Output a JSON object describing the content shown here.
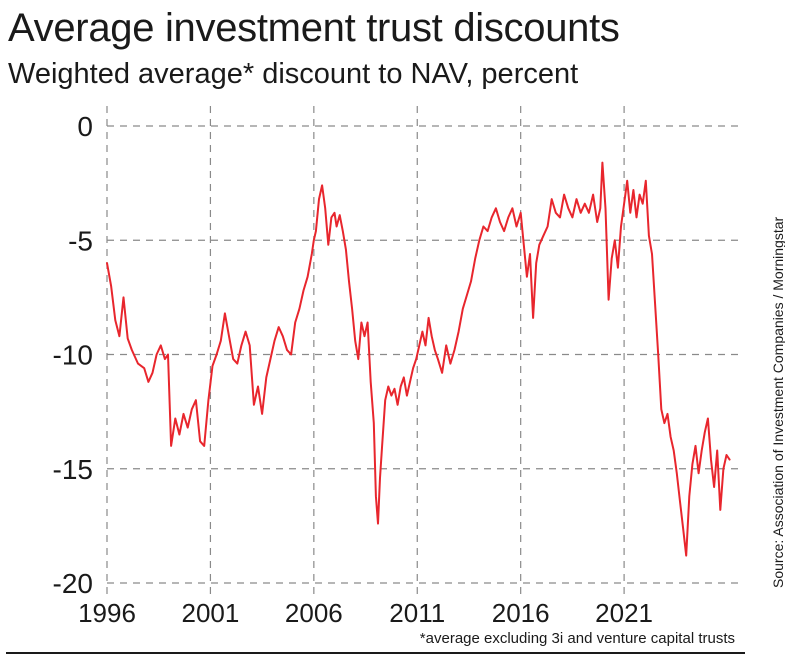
{
  "title": "Average investment trust discounts",
  "subtitle": "Weighted average* discount to NAV, percent",
  "footnote": "*average excluding 3i and venture capital trusts",
  "source": "Source: Association of Investment Companies / Morningstar",
  "colors": {
    "line": "#e8262d",
    "grid": "#8a8a8a",
    "text": "#1a1a1a"
  },
  "chart_data": {
    "type": "line",
    "title": "Average investment trust discounts",
    "subtitle": "Weighted average* discount to NAV, percent",
    "xlabel": "",
    "ylabel": "",
    "xlim": [
      1996,
      2026.7
    ],
    "ylim": [
      -20,
      0
    ],
    "x_ticks": [
      1996,
      2001,
      2006,
      2011,
      2016,
      2021
    ],
    "y_ticks": [
      0,
      -5,
      -10,
      -15,
      -20
    ],
    "grid": true,
    "series": [
      {
        "name": "",
        "points": [
          [
            1996.0,
            -6.0
          ],
          [
            1996.2,
            -7.0
          ],
          [
            1996.4,
            -8.5
          ],
          [
            1996.6,
            -9.2
          ],
          [
            1996.8,
            -7.5
          ],
          [
            1997.0,
            -9.3
          ],
          [
            1997.2,
            -9.8
          ],
          [
            1997.5,
            -10.4
          ],
          [
            1997.8,
            -10.6
          ],
          [
            1998.0,
            -11.2
          ],
          [
            1998.2,
            -10.8
          ],
          [
            1998.4,
            -10.0
          ],
          [
            1998.6,
            -9.6
          ],
          [
            1998.8,
            -10.2
          ],
          [
            1998.95,
            -10.0
          ],
          [
            1999.1,
            -14.0
          ],
          [
            1999.3,
            -12.8
          ],
          [
            1999.5,
            -13.5
          ],
          [
            1999.7,
            -12.6
          ],
          [
            1999.9,
            -13.2
          ],
          [
            2000.1,
            -12.4
          ],
          [
            2000.3,
            -12.0
          ],
          [
            2000.5,
            -13.8
          ],
          [
            2000.7,
            -14.0
          ],
          [
            2000.9,
            -12.0
          ],
          [
            2001.1,
            -10.5
          ],
          [
            2001.3,
            -10.0
          ],
          [
            2001.5,
            -9.4
          ],
          [
            2001.7,
            -8.2
          ],
          [
            2001.9,
            -9.2
          ],
          [
            2002.1,
            -10.2
          ],
          [
            2002.3,
            -10.4
          ],
          [
            2002.5,
            -9.6
          ],
          [
            2002.7,
            -9.0
          ],
          [
            2002.9,
            -9.6
          ],
          [
            2003.1,
            -12.2
          ],
          [
            2003.3,
            -11.4
          ],
          [
            2003.5,
            -12.6
          ],
          [
            2003.7,
            -11.0
          ],
          [
            2003.9,
            -10.2
          ],
          [
            2004.1,
            -9.4
          ],
          [
            2004.3,
            -8.8
          ],
          [
            2004.5,
            -9.2
          ],
          [
            2004.7,
            -9.8
          ],
          [
            2004.9,
            -10.0
          ],
          [
            2005.1,
            -8.6
          ],
          [
            2005.3,
            -8.0
          ],
          [
            2005.5,
            -7.2
          ],
          [
            2005.7,
            -6.6
          ],
          [
            2005.9,
            -5.6
          ],
          [
            2006.0,
            -5.0
          ],
          [
            2006.1,
            -4.6
          ],
          [
            2006.25,
            -3.2
          ],
          [
            2006.4,
            -2.6
          ],
          [
            2006.55,
            -3.6
          ],
          [
            2006.7,
            -5.2
          ],
          [
            2006.85,
            -4.0
          ],
          [
            2007.0,
            -3.8
          ],
          [
            2007.1,
            -4.4
          ],
          [
            2007.25,
            -3.9
          ],
          [
            2007.4,
            -4.6
          ],
          [
            2007.55,
            -5.4
          ],
          [
            2007.7,
            -6.8
          ],
          [
            2007.85,
            -8.0
          ],
          [
            2008.0,
            -9.4
          ],
          [
            2008.15,
            -10.2
          ],
          [
            2008.3,
            -8.6
          ],
          [
            2008.45,
            -9.2
          ],
          [
            2008.6,
            -8.6
          ],
          [
            2008.75,
            -11.2
          ],
          [
            2008.9,
            -13.0
          ],
          [
            2009.0,
            -16.2
          ],
          [
            2009.1,
            -17.4
          ],
          [
            2009.2,
            -15.4
          ],
          [
            2009.3,
            -14.0
          ],
          [
            2009.45,
            -12.0
          ],
          [
            2009.6,
            -11.4
          ],
          [
            2009.75,
            -11.8
          ],
          [
            2009.9,
            -11.5
          ],
          [
            2010.05,
            -12.2
          ],
          [
            2010.2,
            -11.4
          ],
          [
            2010.35,
            -11.0
          ],
          [
            2010.5,
            -11.8
          ],
          [
            2010.65,
            -11.2
          ],
          [
            2010.8,
            -10.6
          ],
          [
            2010.95,
            -10.2
          ],
          [
            2011.1,
            -9.6
          ],
          [
            2011.25,
            -9.0
          ],
          [
            2011.4,
            -9.6
          ],
          [
            2011.55,
            -8.4
          ],
          [
            2011.7,
            -9.2
          ],
          [
            2011.85,
            -9.8
          ],
          [
            2012.0,
            -10.2
          ],
          [
            2012.2,
            -10.8
          ],
          [
            2012.4,
            -9.6
          ],
          [
            2012.6,
            -10.4
          ],
          [
            2012.8,
            -9.8
          ],
          [
            2013.0,
            -9.0
          ],
          [
            2013.2,
            -8.0
          ],
          [
            2013.4,
            -7.4
          ],
          [
            2013.6,
            -6.8
          ],
          [
            2013.8,
            -5.8
          ],
          [
            2014.0,
            -5.0
          ],
          [
            2014.2,
            -4.4
          ],
          [
            2014.4,
            -4.6
          ],
          [
            2014.6,
            -4.0
          ],
          [
            2014.8,
            -3.6
          ],
          [
            2015.0,
            -4.2
          ],
          [
            2015.2,
            -4.6
          ],
          [
            2015.4,
            -4.0
          ],
          [
            2015.6,
            -3.6
          ],
          [
            2015.8,
            -4.4
          ],
          [
            2016.0,
            -3.8
          ],
          [
            2016.15,
            -5.2
          ],
          [
            2016.3,
            -6.6
          ],
          [
            2016.45,
            -5.6
          ],
          [
            2016.6,
            -8.4
          ],
          [
            2016.75,
            -6.0
          ],
          [
            2016.9,
            -5.2
          ],
          [
            2017.1,
            -4.8
          ],
          [
            2017.3,
            -4.4
          ],
          [
            2017.5,
            -3.2
          ],
          [
            2017.7,
            -3.8
          ],
          [
            2017.9,
            -4.0
          ],
          [
            2018.1,
            -3.0
          ],
          [
            2018.3,
            -3.6
          ],
          [
            2018.5,
            -4.0
          ],
          [
            2018.7,
            -3.2
          ],
          [
            2018.9,
            -3.8
          ],
          [
            2019.1,
            -3.4
          ],
          [
            2019.3,
            -3.8
          ],
          [
            2019.5,
            -3.0
          ],
          [
            2019.7,
            -4.2
          ],
          [
            2019.85,
            -3.6
          ],
          [
            2019.95,
            -1.6
          ],
          [
            2020.1,
            -3.6
          ],
          [
            2020.25,
            -7.6
          ],
          [
            2020.4,
            -5.8
          ],
          [
            2020.55,
            -5.0
          ],
          [
            2020.7,
            -6.2
          ],
          [
            2020.85,
            -4.4
          ],
          [
            2021.0,
            -3.4
          ],
          [
            2021.15,
            -2.4
          ],
          [
            2021.3,
            -3.8
          ],
          [
            2021.45,
            -2.8
          ],
          [
            2021.6,
            -4.0
          ],
          [
            2021.75,
            -3.0
          ],
          [
            2021.9,
            -3.4
          ],
          [
            2022.05,
            -2.4
          ],
          [
            2022.2,
            -4.8
          ],
          [
            2022.35,
            -5.6
          ],
          [
            2022.5,
            -7.8
          ],
          [
            2022.65,
            -10.0
          ],
          [
            2022.8,
            -12.4
          ],
          [
            2022.95,
            -13.0
          ],
          [
            2023.1,
            -12.6
          ],
          [
            2023.25,
            -13.6
          ],
          [
            2023.4,
            -14.2
          ],
          [
            2023.55,
            -15.2
          ],
          [
            2023.7,
            -16.4
          ],
          [
            2023.85,
            -17.6
          ],
          [
            2024.0,
            -18.8
          ],
          [
            2024.15,
            -16.2
          ],
          [
            2024.3,
            -14.8
          ],
          [
            2024.45,
            -14.0
          ],
          [
            2024.6,
            -15.2
          ],
          [
            2024.75,
            -14.2
          ],
          [
            2024.9,
            -13.4
          ],
          [
            2025.05,
            -12.8
          ],
          [
            2025.2,
            -14.6
          ],
          [
            2025.35,
            -15.8
          ],
          [
            2025.5,
            -14.2
          ],
          [
            2025.65,
            -16.8
          ],
          [
            2025.8,
            -15.0
          ],
          [
            2025.95,
            -14.4
          ],
          [
            2026.1,
            -14.6
          ]
        ]
      }
    ]
  }
}
